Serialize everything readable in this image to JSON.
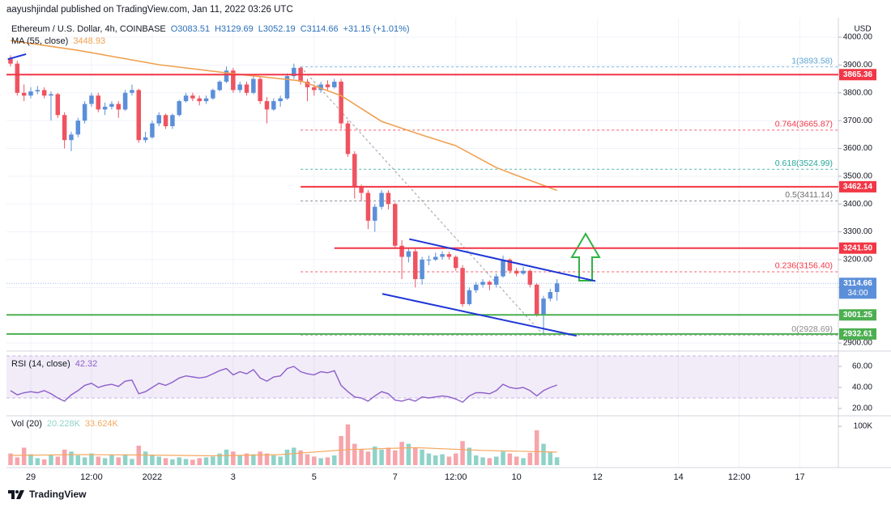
{
  "header": {
    "publisher": "aayushjindal published on TradingView.com, Jan 11, 2022 03:26 UTC"
  },
  "chart_data": {
    "type": "candlestick",
    "title": "Ethereum / U.S. Dollar, 4h, COINBASE",
    "ohlc_legend": [
      "O3083.51",
      "H3129.69",
      "L3052.19",
      "C3114.66",
      "+31.15 (+1.01%)"
    ],
    "currency": "USD",
    "open": [
      3925,
      3905,
      3800,
      3790,
      3805,
      3810,
      3790,
      3795,
      3720,
      3630,
      3650,
      3700,
      3760,
      3790,
      3740,
      3750,
      3760,
      3740,
      3800,
      3810,
      3630,
      3640,
      3690,
      3720,
      3680,
      3720,
      3770,
      3790,
      3780,
      3770,
      3780,
      3810,
      3840,
      3880,
      3810,
      3830,
      3800,
      3850,
      3770,
      3740,
      3770,
      3780,
      3860,
      3890,
      3840,
      3820,
      3810,
      3830,
      3820,
      3840,
      3690,
      3580,
      3460,
      3440,
      3340,
      3390,
      3440,
      3400,
      3250,
      3210,
      3230,
      3130,
      3200,
      3200,
      3210,
      3220,
      3210,
      3170,
      3040,
      3090,
      3110,
      3120,
      3110,
      3140,
      3200,
      3160,
      3150,
      3160,
      3110,
      3000,
      3060,
      3083.51
    ],
    "high": [
      3935,
      3915,
      3830,
      3820,
      3825,
      3820,
      3805,
      3800,
      3730,
      3660,
      3710,
      3770,
      3800,
      3800,
      3765,
      3770,
      3770,
      3810,
      3830,
      3815,
      3660,
      3700,
      3730,
      3725,
      3725,
      3775,
      3800,
      3800,
      3790,
      3790,
      3815,
      3845,
      3895,
      3890,
      3840,
      3840,
      3860,
      3860,
      3785,
      3780,
      3790,
      3870,
      3905,
      3893.58,
      3850,
      3830,
      3840,
      3845,
      3850,
      3850,
      3700,
      3590,
      3470,
      3450,
      3400,
      3450,
      3450,
      3405,
      3270,
      3240,
      3240,
      3210,
      3215,
      3225,
      3230,
      3228,
      3215,
      3180,
      3100,
      3120,
      3130,
      3125,
      3150,
      3215,
      3205,
      3170,
      3175,
      3165,
      3115,
      3070,
      3095,
      3129.69
    ],
    "low": [
      3895,
      3790,
      3770,
      3780,
      3795,
      3780,
      3700,
      3710,
      3600,
      3590,
      3640,
      3690,
      3750,
      3730,
      3720,
      3740,
      3710,
      3735,
      3790,
      3620,
      3620,
      3635,
      3680,
      3670,
      3670,
      3715,
      3765,
      3770,
      3755,
      3760,
      3775,
      3805,
      3835,
      3800,
      3800,
      3790,
      3795,
      3760,
      3690,
      3735,
      3750,
      3775,
      3850,
      3830,
      3770,
      3790,
      3800,
      3810,
      3815,
      3670,
      3570,
      3420,
      3410,
      3310,
      3300,
      3380,
      3380,
      3240,
      3130,
      3190,
      3100,
      3110,
      3180,
      3195,
      3200,
      3200,
      3160,
      3030,
      3035,
      3080,
      3100,
      3090,
      3100,
      3135,
      3150,
      3140,
      3145,
      3100,
      2995,
      2928.69,
      3050,
      3052.19
    ],
    "close": [
      3905,
      3800,
      3790,
      3805,
      3810,
      3790,
      3795,
      3720,
      3630,
      3650,
      3700,
      3760,
      3790,
      3740,
      3750,
      3760,
      3740,
      3800,
      3810,
      3630,
      3640,
      3690,
      3720,
      3680,
      3720,
      3770,
      3790,
      3780,
      3770,
      3780,
      3810,
      3840,
      3880,
      3810,
      3830,
      3800,
      3850,
      3770,
      3740,
      3770,
      3780,
      3860,
      3890,
      3840,
      3820,
      3810,
      3830,
      3820,
      3840,
      3690,
      3580,
      3460,
      3440,
      3340,
      3390,
      3440,
      3400,
      3250,
      3210,
      3230,
      3130,
      3200,
      3200,
      3210,
      3220,
      3210,
      3170,
      3040,
      3090,
      3110,
      3120,
      3110,
      3140,
      3200,
      3160,
      3150,
      3160,
      3110,
      3000,
      3060,
      3083.51,
      3114.66
    ],
    "up_color": "#5b8fd9",
    "down_color": "#ef5360",
    "grid": true,
    "xlim": [
      -0.6,
      122.7
    ],
    "xticks": [
      {
        "value": 3,
        "label": "29"
      },
      {
        "value": 12,
        "label": "12:00"
      },
      {
        "value": 21,
        "label": "2022"
      },
      {
        "value": 33,
        "label": "3"
      },
      {
        "value": 45,
        "label": "5"
      },
      {
        "value": 57,
        "label": "7"
      },
      {
        "value": 66,
        "label": "12:00"
      },
      {
        "value": 75,
        "label": "10"
      },
      {
        "value": 87,
        "label": "12"
      },
      {
        "value": 99,
        "label": "14"
      },
      {
        "value": 108,
        "label": "12:00"
      },
      {
        "value": 117,
        "label": "17"
      }
    ],
    "ylim": [
      2877,
      4064
    ],
    "yticks": [
      {
        "value": 2900,
        "label": "2900.00"
      },
      {
        "value": 3000,
        "label": "3000.00"
      },
      {
        "value": 3100,
        "label": "3100.00"
      },
      {
        "value": 3200,
        "label": "3200.00"
      },
      {
        "value": 3300,
        "label": "3300.00"
      },
      {
        "value": 3400,
        "label": "3400.00"
      },
      {
        "value": 3500,
        "label": "3500.00"
      },
      {
        "value": 3600,
        "label": "3600.00"
      },
      {
        "value": 3700,
        "label": "3700.00"
      },
      {
        "value": 3800,
        "label": "3800.00"
      },
      {
        "value": 3900,
        "label": "3900.00"
      },
      {
        "value": 4000,
        "label": "4000.00"
      }
    ],
    "moving_average": {
      "name": "MA (55, close)",
      "value_label": "3448.93",
      "color": "#f0a050",
      "x": [
        0,
        10,
        22,
        34,
        43,
        49,
        55,
        61,
        66,
        72,
        76,
        81
      ],
      "values": [
        3988,
        3953,
        3901,
        3866,
        3843,
        3790,
        3697,
        3648,
        3610,
        3531,
        3494,
        3448.93
      ]
    },
    "levels": [
      {
        "value": 3865.36,
        "label": "3865.36",
        "color": "#f23645",
        "start": -0.6
      },
      {
        "value": 3462.14,
        "label": "3462.14",
        "color": "#f23645",
        "start": 43
      },
      {
        "value": 3241.5,
        "label": "3241.50",
        "color": "#f23645",
        "start": 48
      },
      {
        "value": 3001.25,
        "label": "3001.25",
        "color": "#4caf50",
        "start": -0.6
      },
      {
        "value": 2932.61,
        "label": "2932.61",
        "color": "#4caf50",
        "start": -0.6
      }
    ],
    "last_price": {
      "value": 3114.66,
      "label": "3114.66",
      "countdown": "34:00",
      "color": "#5b8fd9"
    },
    "fib": {
      "x": [
        43,
        79
      ],
      "levels": [
        {
          "label": "1(3893.58)",
          "value": 3893.58,
          "color": "#5da3d6"
        },
        {
          "label": "0.764(3665.87)",
          "value": 3665.87,
          "color": "#f23645"
        },
        {
          "label": "0.618(3524.99)",
          "value": 3524.99,
          "color": "#26a69a"
        },
        {
          "label": "0.5(3411.14)",
          "value": 3411.14,
          "color": "#6b6b6b"
        },
        {
          "label": "0.236(3156.40)",
          "value": 3156.4,
          "color": "#f23645"
        },
        {
          "label": "0(2928.69)",
          "value": 2928.69,
          "color": "#8a8a8a"
        }
      ]
    },
    "trendlines": [
      {
        "color": "#1f36d6",
        "points": [
          [
            -0.4,
            3921
          ],
          [
            2.3,
            3939
          ]
        ]
      },
      {
        "color": "#1f36d6",
        "points": [
          [
            59.1,
            3274
          ],
          [
            86.7,
            3123
          ]
        ]
      },
      {
        "color": "#1f36d6",
        "points": [
          [
            55.1,
            3077
          ],
          [
            83.9,
            2926
          ]
        ]
      }
    ],
    "rsi": {
      "name": "RSI (14, close)",
      "value_label": "42.32",
      "color": "#8e5fc9",
      "ylim": [
        14.6,
        73.1
      ],
      "band": [
        30,
        70
      ],
      "yticks": [
        {
          "value": 20,
          "label": "20.00"
        },
        {
          "value": 40,
          "label": "40.00"
        },
        {
          "value": 60,
          "label": "60.00"
        }
      ],
      "values": [
        37,
        33,
        35,
        36,
        35,
        37,
        34,
        30,
        27,
        33,
        37,
        42,
        44,
        40,
        42,
        43,
        41,
        46,
        47,
        34,
        36,
        40,
        44,
        42,
        45,
        49,
        51,
        50,
        49,
        50,
        53,
        56,
        58,
        52,
        55,
        53,
        57,
        49,
        46,
        50,
        51,
        58,
        60,
        55,
        53,
        52,
        55,
        54,
        56,
        42,
        36,
        31,
        30,
        27,
        32,
        36,
        34,
        28,
        27,
        29,
        27,
        31,
        30,
        31,
        32,
        31,
        29,
        26,
        32,
        35,
        35,
        34,
        37,
        43,
        40,
        39,
        40,
        37,
        32,
        37,
        40,
        42.32
      ]
    },
    "volume": {
      "name": "Vol (20)",
      "value_label": "20.228K",
      "up_color": "#8fd3c8",
      "down_color": "#f6a5ab",
      "ylim": [
        0,
        123000
      ],
      "yticks": [
        {
          "value": 100000,
          "label": "100K"
        }
      ],
      "values": [
        30000,
        20000,
        45000,
        28000,
        18000,
        15000,
        25000,
        22000,
        40000,
        35000,
        25000,
        20000,
        30000,
        22000,
        18000,
        26000,
        20000,
        28000,
        16000,
        50000,
        35000,
        25000,
        22000,
        18000,
        15000,
        20000,
        16000,
        14000,
        18000,
        20000,
        22000,
        30000,
        40000,
        35000,
        25000,
        30000,
        28000,
        35000,
        30000,
        25000,
        22000,
        40000,
        45000,
        38000,
        28000,
        22000,
        18000,
        20000,
        25000,
        75000,
        105000,
        55000,
        40000,
        35000,
        48000,
        40000,
        45000,
        38000,
        60000,
        55000,
        45000,
        40000,
        30000,
        25000,
        28000,
        22000,
        30000,
        62000,
        45000,
        25000,
        20000,
        18000,
        22000,
        35000,
        30000,
        22000,
        18000,
        32000,
        90000,
        55000,
        33000,
        20228
      ],
      "ma": {
        "value_label": "33.624K",
        "color": "#f5a860",
        "x": [
          0,
          10,
          20,
          30,
          40,
          50,
          60,
          70,
          81
        ],
        "values": [
          25000,
          27000,
          26000,
          24000,
          27000,
          40000,
          45000,
          38000,
          33624
        ]
      }
    }
  },
  "footer": {
    "brand": "TradingView"
  }
}
